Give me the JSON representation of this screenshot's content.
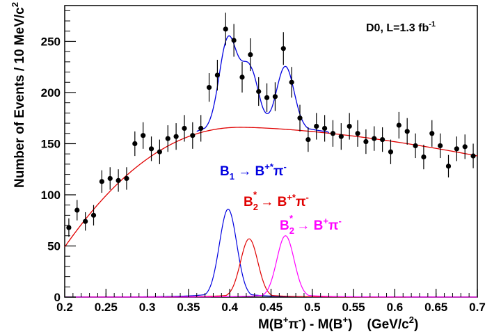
{
  "chart_data": {
    "type": "scatter",
    "title": "",
    "corner_label": {
      "main": "D0, L=1.3 fb",
      "sup": "-1"
    },
    "ylabel": {
      "main": "Number of Events / 10 MeV/c",
      "sup": "2"
    },
    "xlabel": {
      "a": "M(B",
      "a_sup": "+",
      "b": "π",
      "b_sup": "-",
      "c": ") - M(B",
      "c_sup": "+",
      "d": ")    (GeV/c",
      "d_sup": "2",
      "e": ")"
    },
    "xlim": [
      0.2,
      0.7
    ],
    "ylim": [
      0,
      285
    ],
    "x_ticks": [
      "0.2",
      "0.25",
      "0.3",
      "0.35",
      "0.4",
      "0.45",
      "0.5",
      "0.55",
      "0.6",
      "0.65",
      "0.7"
    ],
    "y_ticks": [
      "0",
      "50",
      "100",
      "150",
      "200",
      "250"
    ],
    "points": {
      "name": "data",
      "color": "#000000",
      "x": [
        0.205,
        0.215,
        0.225,
        0.235,
        0.245,
        0.255,
        0.265,
        0.275,
        0.285,
        0.295,
        0.305,
        0.315,
        0.325,
        0.335,
        0.345,
        0.355,
        0.365,
        0.375,
        0.385,
        0.395,
        0.405,
        0.415,
        0.425,
        0.435,
        0.445,
        0.455,
        0.465,
        0.475,
        0.485,
        0.495,
        0.505,
        0.515,
        0.525,
        0.535,
        0.545,
        0.555,
        0.565,
        0.575,
        0.585,
        0.595,
        0.605,
        0.615,
        0.625,
        0.635,
        0.645,
        0.655,
        0.665,
        0.675,
        0.685,
        0.695
      ],
      "y": [
        68,
        85,
        74,
        80,
        113,
        116,
        114,
        116,
        150,
        158,
        145,
        142,
        155,
        157,
        165,
        158,
        165,
        205,
        217,
        262,
        251,
        215,
        237,
        201,
        195,
        196,
        243,
        210,
        175,
        154,
        167,
        165,
        160,
        157,
        167,
        160,
        152,
        155,
        154,
        142,
        168,
        162,
        148,
        137,
        160,
        148,
        128,
        145,
        147,
        138
      ],
      "err": [
        9,
        10,
        9,
        10,
        11,
        11,
        11,
        11,
        12,
        13,
        12,
        12,
        13,
        13,
        13,
        13,
        13,
        14,
        15,
        16,
        16,
        15,
        16,
        14,
        14,
        14,
        16,
        15,
        13,
        12,
        13,
        13,
        13,
        13,
        13,
        13,
        12,
        12,
        12,
        12,
        13,
        13,
        12,
        12,
        13,
        12,
        11,
        12,
        12,
        12
      ]
    },
    "curves": [
      {
        "name": "background",
        "color": "#e00000"
      },
      {
        "name": "total fit",
        "color": "#0000e0"
      },
      {
        "name": "B1",
        "color": "#0000e0",
        "mean": 0.398,
        "amplitude": 86,
        "sigma": 0.0105
      },
      {
        "name": "B2* -> B*pi",
        "color": "#e00000",
        "mean": 0.4235,
        "amplitude": 57,
        "sigma": 0.0105
      },
      {
        "name": "B2* -> B pi",
        "color": "#ff00ff",
        "mean": 0.4675,
        "amplitude": 60,
        "sigma": 0.0105
      }
    ],
    "annotations": [
      {
        "id": "b1",
        "color": "#0000e0",
        "parts": [
          "B",
          "1",
          " → B",
          "+*",
          "π",
          "-"
        ]
      },
      {
        "id": "b2star_bstar",
        "color": "#e00000",
        "parts": [
          "B",
          "2",
          "*",
          " → B",
          "+*",
          "π",
          "-"
        ]
      },
      {
        "id": "b2star_b",
        "color": "#ff00ff",
        "parts": [
          "B",
          "2",
          "*",
          " → B",
          "+",
          "π",
          "-"
        ]
      }
    ]
  }
}
